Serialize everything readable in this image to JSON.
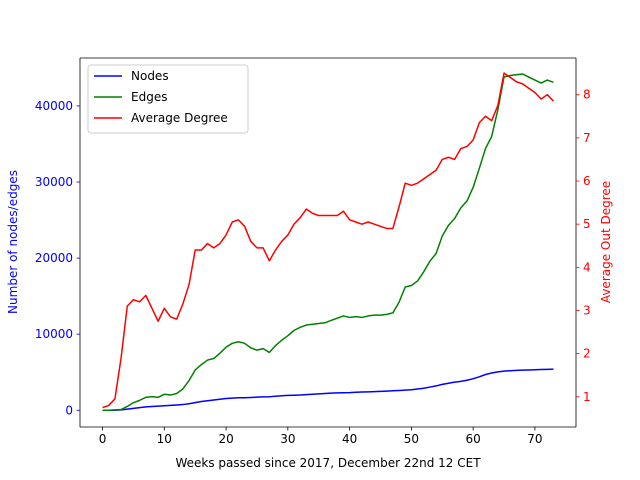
{
  "chart_data": {
    "type": "line",
    "xlabel": "Weeks passed since 2017, December 22nd 12 CET",
    "ylabel_left": "Number of nodes/edges",
    "ylabel_right": "Average Out Degree",
    "xlim": [
      -3.65,
      76.65
    ],
    "ylim_left": [
      -2200,
      46300
    ],
    "ylim_right": [
      0.3,
      8.85
    ],
    "xticks": [
      0,
      10,
      20,
      30,
      40,
      50,
      60,
      70
    ],
    "yticks_left": [
      0,
      10000,
      20000,
      30000,
      40000
    ],
    "yticks_right": [
      1,
      2,
      3,
      4,
      5,
      6,
      7,
      8
    ],
    "legend_position": "top-left",
    "grid": false,
    "colors": {
      "nodes": "#0000ff",
      "edges": "#008000",
      "degree": "#ff0000",
      "left_axis": "#0000ff",
      "right_axis": "#ff0000"
    },
    "series": [
      {
        "name": "Nodes",
        "axis": "left",
        "color": "#0000ff",
        "x": [
          0,
          1,
          2,
          3,
          4,
          5,
          6,
          7,
          8,
          9,
          10,
          11,
          12,
          13,
          14,
          15,
          16,
          17,
          18,
          19,
          20,
          21,
          22,
          23,
          24,
          25,
          26,
          27,
          28,
          29,
          30,
          31,
          32,
          33,
          34,
          35,
          36,
          37,
          38,
          39,
          40,
          41,
          42,
          43,
          44,
          45,
          46,
          47,
          48,
          49,
          50,
          51,
          52,
          53,
          54,
          55,
          56,
          57,
          58,
          59,
          60,
          61,
          62,
          63,
          64,
          65,
          66,
          67,
          68,
          69,
          70,
          71,
          72,
          73
        ],
        "y": [
          0,
          0,
          0,
          50,
          150,
          250,
          350,
          450,
          500,
          550,
          600,
          650,
          700,
          750,
          850,
          1000,
          1150,
          1250,
          1350,
          1450,
          1550,
          1600,
          1650,
          1650,
          1680,
          1720,
          1760,
          1780,
          1850,
          1900,
          1950,
          1980,
          2000,
          2050,
          2100,
          2150,
          2200,
          2250,
          2280,
          2300,
          2320,
          2360,
          2400,
          2420,
          2450,
          2480,
          2520,
          2560,
          2600,
          2650,
          2700,
          2800,
          2900,
          3050,
          3200,
          3400,
          3550,
          3700,
          3800,
          3950,
          4150,
          4400,
          4700,
          4900,
          5050,
          5150,
          5200,
          5250,
          5280,
          5300,
          5320,
          5350,
          5380,
          5400
        ]
      },
      {
        "name": "Edges",
        "axis": "left",
        "color": "#008000",
        "x": [
          0,
          1,
          2,
          3,
          4,
          5,
          6,
          7,
          8,
          9,
          10,
          11,
          12,
          13,
          14,
          15,
          16,
          17,
          18,
          19,
          20,
          21,
          22,
          23,
          24,
          25,
          26,
          27,
          28,
          29,
          30,
          31,
          32,
          33,
          34,
          35,
          36,
          37,
          38,
          39,
          40,
          41,
          42,
          43,
          44,
          45,
          46,
          47,
          48,
          49,
          50,
          51,
          52,
          53,
          54,
          55,
          56,
          57,
          58,
          59,
          60,
          61,
          62,
          63,
          64,
          65,
          66,
          67,
          68,
          69,
          70,
          71,
          72,
          73
        ],
        "y": [
          0,
          0,
          50,
          100,
          500,
          1000,
          1300,
          1700,
          1800,
          1700,
          2100,
          2000,
          2200,
          2800,
          3900,
          5300,
          6000,
          6600,
          6800,
          7500,
          8300,
          8800,
          9000,
          8800,
          8200,
          7900,
          8100,
          7600,
          8500,
          9200,
          9800,
          10500,
          10900,
          11200,
          11300,
          11400,
          11500,
          11800,
          12100,
          12400,
          12200,
          12300,
          12200,
          12400,
          12500,
          12500,
          12600,
          12800,
          14200,
          16200,
          16400,
          17000,
          18200,
          19600,
          20600,
          22900,
          24300,
          25200,
          26600,
          27500,
          29300,
          31800,
          34400,
          36000,
          39500,
          43800,
          44000,
          44100,
          44200,
          43800,
          43400,
          43000,
          43400,
          43100
        ]
      },
      {
        "name": "Average Degree",
        "axis": "right",
        "color": "#ff0000",
        "x": [
          0,
          1,
          2,
          3,
          4,
          5,
          6,
          7,
          8,
          9,
          10,
          11,
          12,
          13,
          14,
          15,
          16,
          17,
          18,
          19,
          20,
          21,
          22,
          23,
          24,
          25,
          26,
          27,
          28,
          29,
          30,
          31,
          32,
          33,
          34,
          35,
          36,
          37,
          38,
          39,
          40,
          41,
          42,
          43,
          44,
          45,
          46,
          47,
          48,
          49,
          50,
          51,
          52,
          53,
          54,
          55,
          56,
          57,
          58,
          59,
          60,
          61,
          62,
          63,
          64,
          65,
          66,
          67,
          68,
          69,
          70,
          71,
          72,
          73
        ],
        "y": [
          0.75,
          0.8,
          0.95,
          1.9,
          3.1,
          3.25,
          3.2,
          3.35,
          3.05,
          2.75,
          3.05,
          2.85,
          2.8,
          3.15,
          3.6,
          4.4,
          4.4,
          4.55,
          4.45,
          4.55,
          4.75,
          5.05,
          5.1,
          4.95,
          4.6,
          4.45,
          4.45,
          4.15,
          4.4,
          4.6,
          4.75,
          5.0,
          5.15,
          5.35,
          5.25,
          5.2,
          5.2,
          5.2,
          5.2,
          5.3,
          5.1,
          5.05,
          5.0,
          5.05,
          5.0,
          4.95,
          4.9,
          4.9,
          5.4,
          5.95,
          5.9,
          5.95,
          6.05,
          6.15,
          6.25,
          6.5,
          6.55,
          6.5,
          6.75,
          6.8,
          6.95,
          7.35,
          7.5,
          7.4,
          7.75,
          8.5,
          8.4,
          8.3,
          8.25,
          8.15,
          8.05,
          7.9,
          8.0,
          7.85
        ]
      }
    ]
  }
}
